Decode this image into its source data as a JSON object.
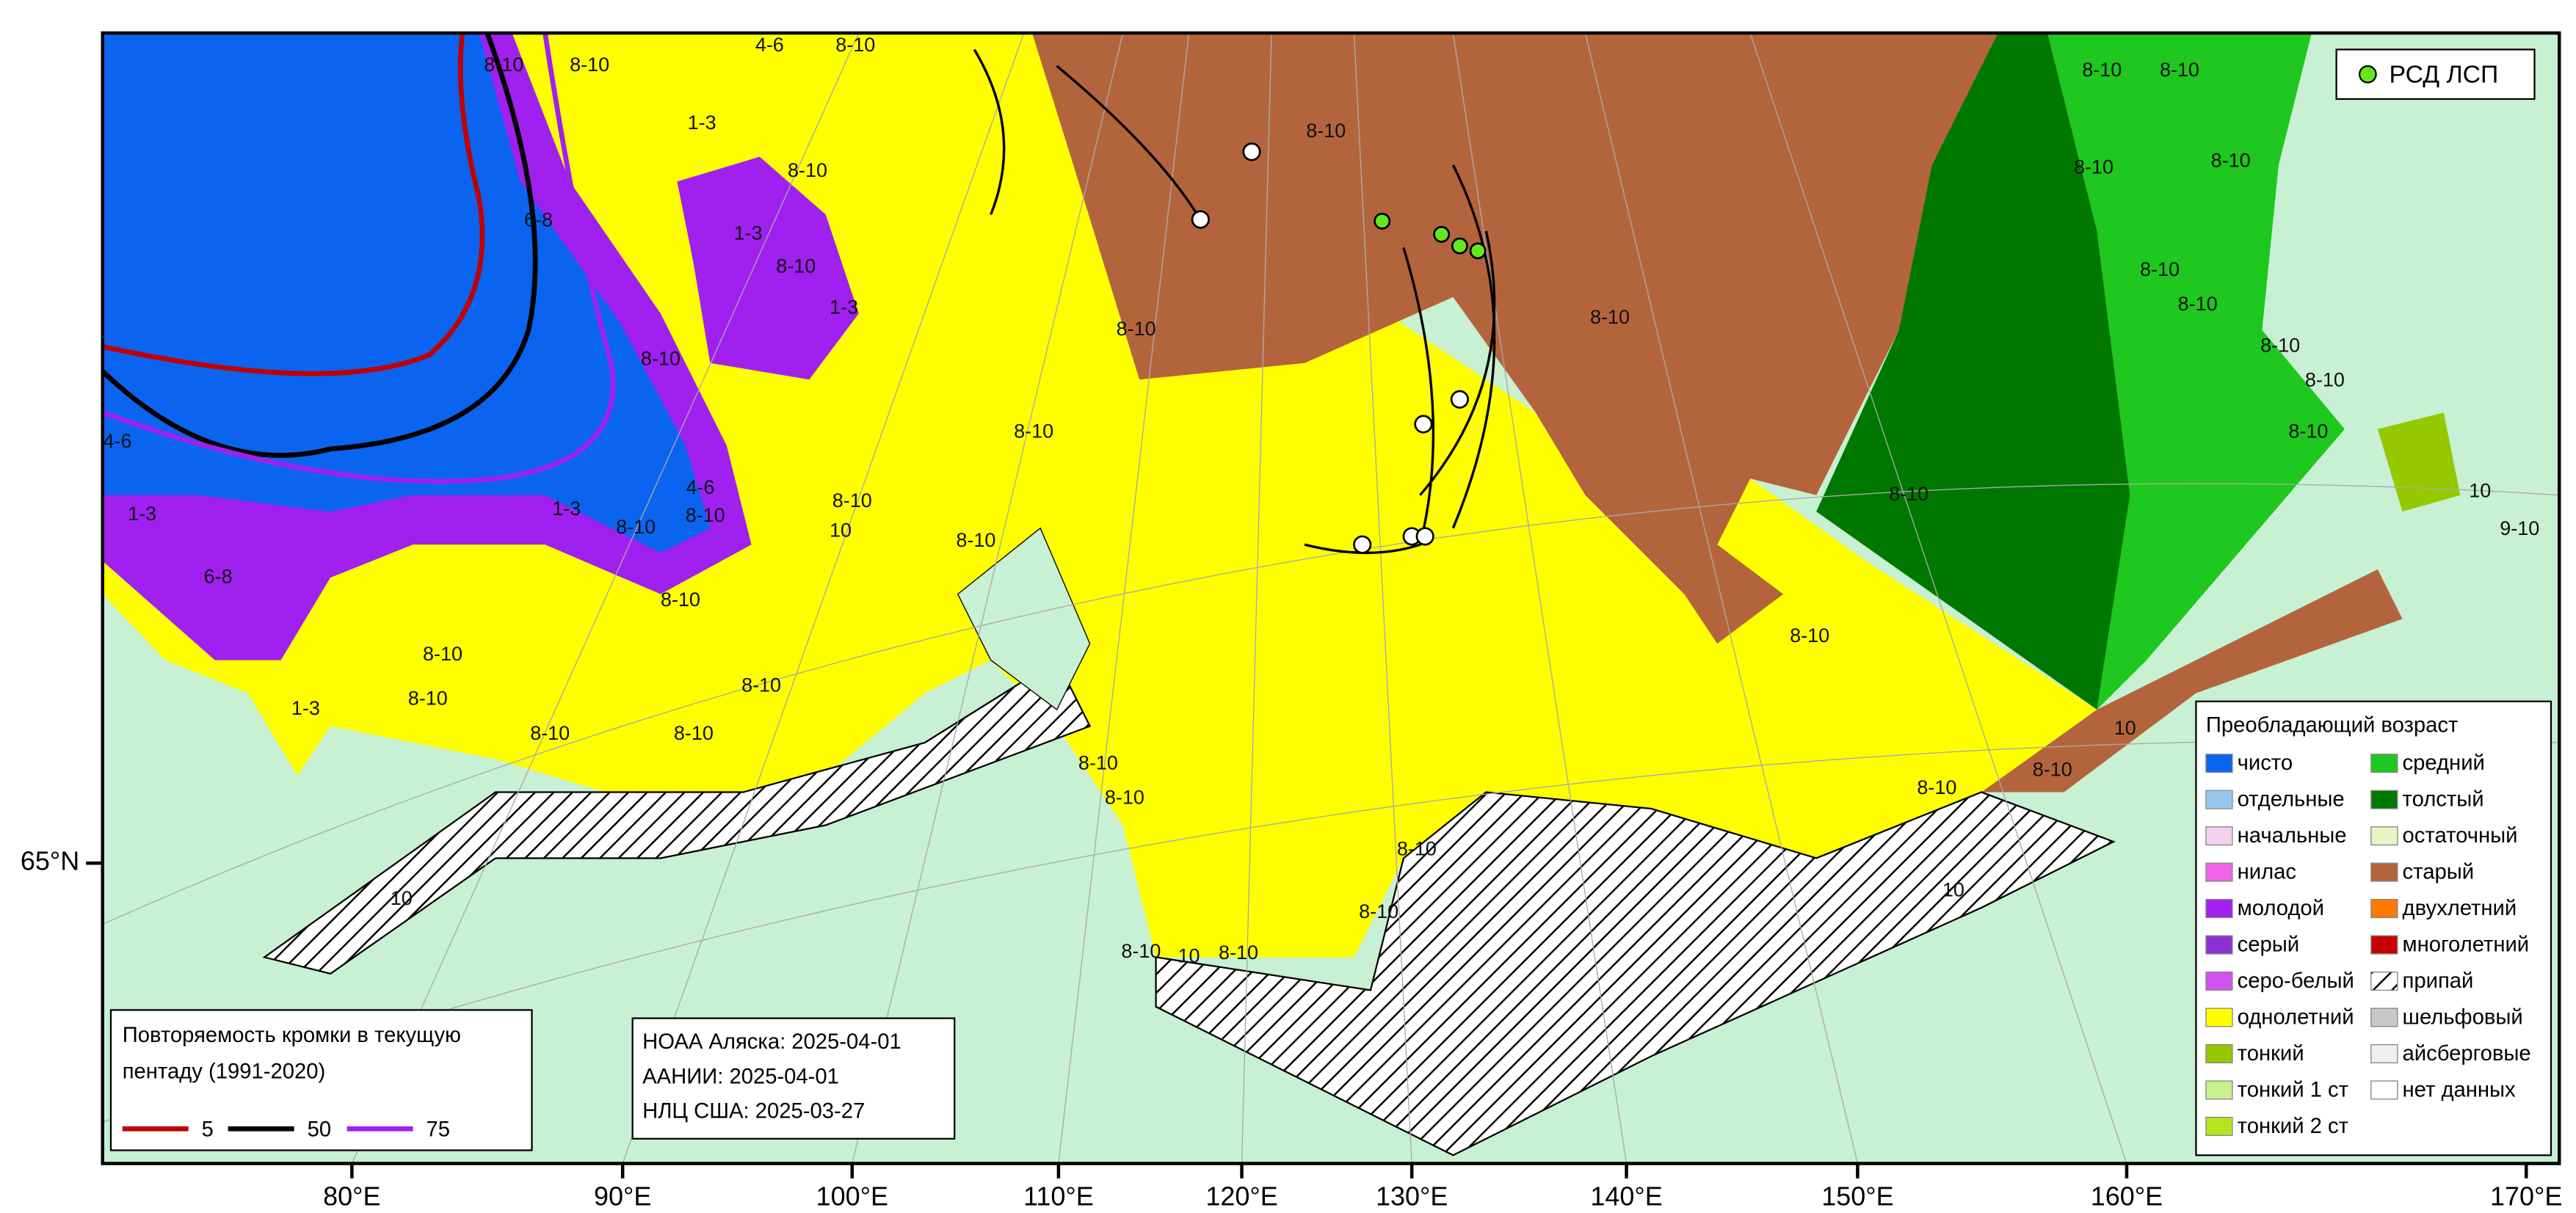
{
  "axes": {
    "x_labels": [
      "80°E",
      "90°E",
      "100°E",
      "110°E",
      "120°E",
      "130°E",
      "140°E",
      "150°E",
      "160°E",
      "170°E"
    ],
    "y_labels": [
      "65°N"
    ]
  },
  "point_legend": {
    "label": "РСД ЛСП",
    "color": "#66e61e"
  },
  "age_legend": {
    "title": "Преобладающий возраст",
    "items": [
      {
        "label": "чисто",
        "color": "#0a64f0"
      },
      {
        "label": "отдельные",
        "color": "#96c8f0"
      },
      {
        "label": "начальные",
        "color": "#f0d2f0"
      },
      {
        "label": "нилас",
        "color": "#f064e6"
      },
      {
        "label": "молодой",
        "color": "#a020f0"
      },
      {
        "label": "серый",
        "color": "#8c32d2"
      },
      {
        "label": "серо-белый",
        "color": "#d250f0"
      },
      {
        "label": "однолетний",
        "color": "#ffff00"
      },
      {
        "label": "тонкий",
        "color": "#96c800"
      },
      {
        "label": "тонкий 1 ст",
        "color": "#c8f08c"
      },
      {
        "label": "тонкий 2 ст",
        "color": "#b4e61e"
      },
      {
        "label": "средний",
        "color": "#1ec81e"
      },
      {
        "label": "толстый",
        "color": "#007800"
      },
      {
        "label": "остаточный",
        "color": "#e6f5c8"
      },
      {
        "label": "старый",
        "color": "#b4643c"
      },
      {
        "label": "двухлетний",
        "color": "#ff7800"
      },
      {
        "label": "многолетний",
        "color": "#c80000"
      },
      {
        "label": "припай",
        "color": "#ffffff",
        "hatched": true
      },
      {
        "label": "шельфовый",
        "color": "#c8c8c8"
      },
      {
        "label": "айсберговые",
        "color": "#f0f0f0"
      },
      {
        "label": "нет данных",
        "color": "#ffffff"
      }
    ]
  },
  "edge_legend": {
    "title_lines": [
      "Повторяемость кромки в текущую",
      "пентаду (1991-2020)"
    ],
    "items": [
      {
        "label": "5",
        "color": "#c00000"
      },
      {
        "label": "50",
        "color": "#000000"
      },
      {
        "label": "75",
        "color": "#a020f0"
      }
    ]
  },
  "sources": [
    "НОАА Аляска: 2025-04-01",
    "ААНИИ: 2025-04-01",
    "НЛЦ США: 2025-03-27"
  ],
  "map": {
    "ice_labels": [
      "4-6",
      "8-10",
      "8-10",
      "8-10",
      "1-3",
      "8-10",
      "6-8",
      "1-3",
      "8-10",
      "1-3",
      "8-10",
      "8-10",
      "8-10",
      "8-10",
      "8-10",
      "8-10",
      "8-10",
      "8-10",
      "8-10",
      "8-10",
      "8-10",
      "8-10",
      "8-10",
      "8-10",
      "8-10",
      "8-10",
      "8-10",
      "4-6",
      "1-3",
      "6-8",
      "8-10",
      "8-10",
      "1-3",
      "8-10",
      "8-10",
      "8-10",
      "8-10",
      "8-10",
      "8-10",
      "4-6",
      "8-10",
      "8-10",
      "1-3",
      "10",
      "8-10",
      "8-10",
      "8-10",
      "8-10",
      "8-10",
      "8-10",
      "10",
      "10",
      "10",
      "8-10",
      "10",
      "9-10",
      "10"
    ]
  }
}
